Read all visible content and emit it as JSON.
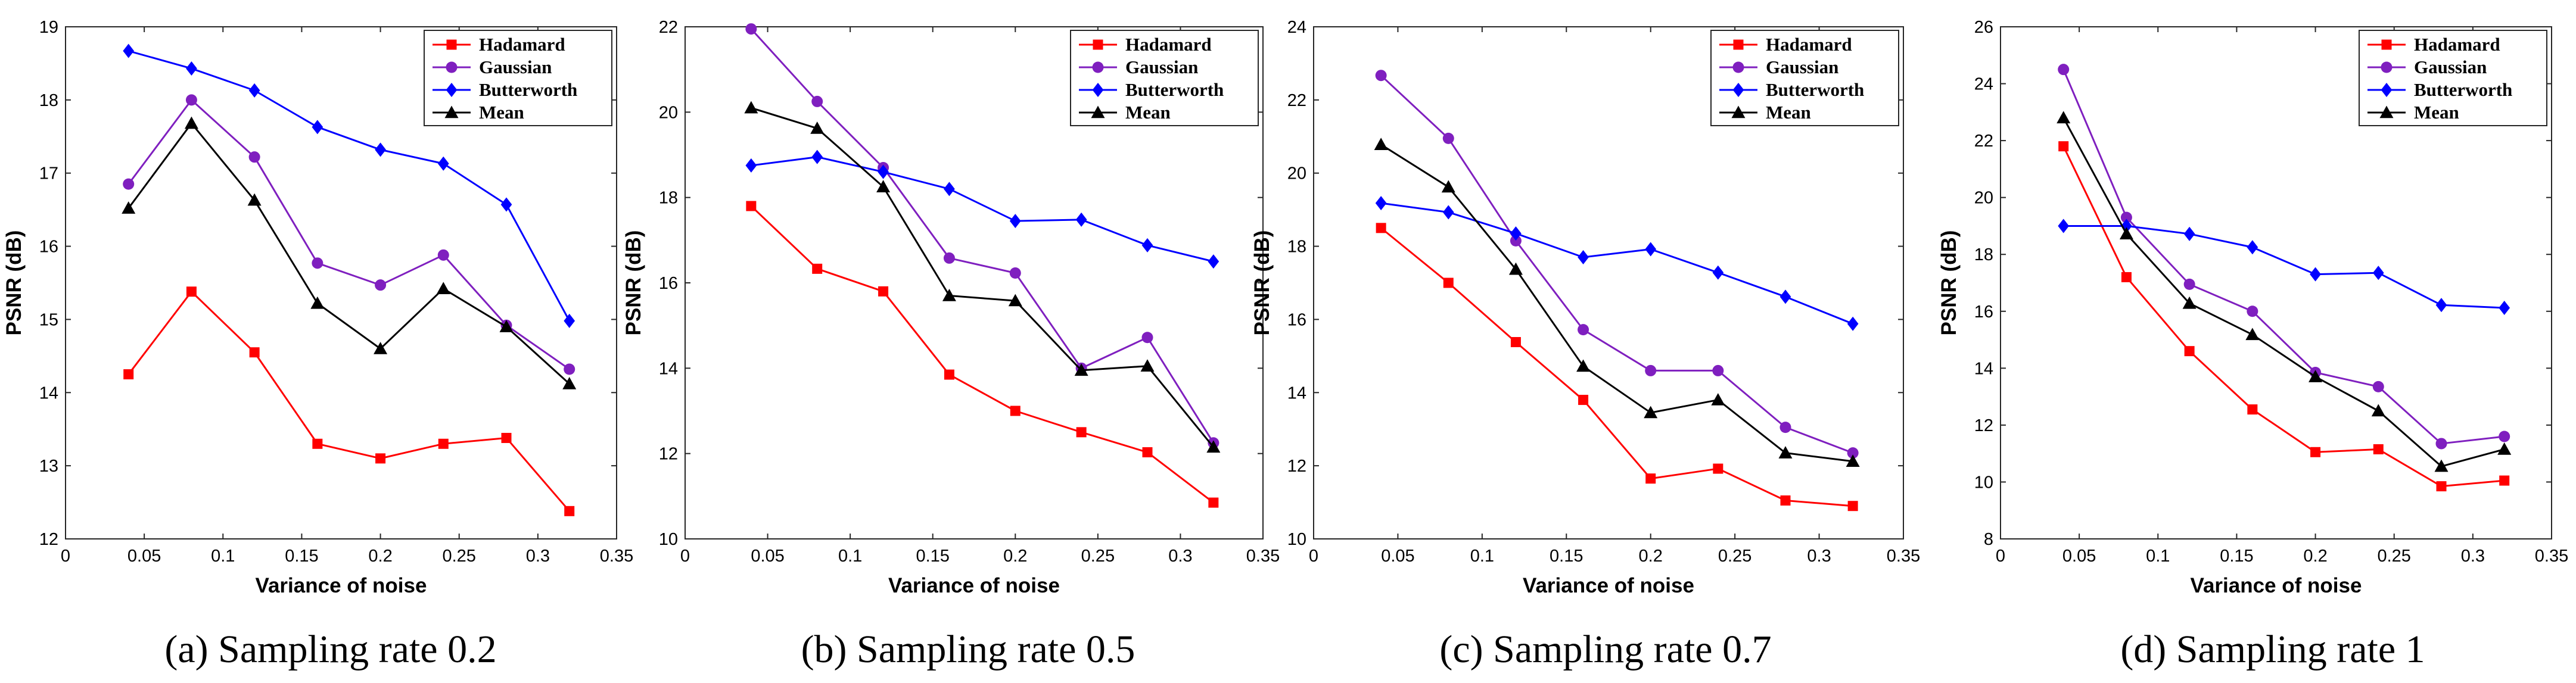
{
  "colors": {
    "Hadamard": "#ff0000",
    "Gaussian": "#7f1fbf",
    "Butterworth": "#0000ff",
    "Mean": "#000000"
  },
  "markers": {
    "Hadamard": "square",
    "Gaussian": "circle",
    "Butterworth": "diamond",
    "Mean": "triangle"
  },
  "chart_data": [
    {
      "type": "line",
      "caption": "(a) Sampling rate 0.2",
      "xlabel": "Variance of noise",
      "ylabel": "PSNR (dB)",
      "xlim": [
        0,
        0.35
      ],
      "ylim": [
        12,
        19
      ],
      "xticks": [
        0,
        0.05,
        0.1,
        0.15,
        0.2,
        0.25,
        0.3,
        0.35
      ],
      "xtick_labels": [
        "0",
        "0.05",
        "0.1",
        "0.15",
        "0.2",
        "0.25",
        "0.3",
        "0.35"
      ],
      "yticks": [
        12,
        13,
        14,
        15,
        16,
        17,
        18,
        19
      ],
      "ytick_labels": [
        "12",
        "13",
        "14",
        "15",
        "16",
        "17",
        "18",
        "19"
      ],
      "legend_position": "top-right",
      "x": [
        0.04,
        0.08,
        0.12,
        0.16,
        0.2,
        0.24,
        0.28,
        0.32
      ],
      "series": [
        {
          "name": "Hadamard",
          "values": [
            14.25,
            15.38,
            14.55,
            13.3,
            13.1,
            13.3,
            13.38,
            12.38
          ]
        },
        {
          "name": "Gaussian",
          "values": [
            16.85,
            18.0,
            17.22,
            15.77,
            15.47,
            15.88,
            14.92,
            14.32
          ]
        },
        {
          "name": "Butterworth",
          "values": [
            18.67,
            18.43,
            18.13,
            17.63,
            17.32,
            17.13,
            16.57,
            14.98
          ]
        },
        {
          "name": "Mean",
          "values": [
            16.52,
            17.68,
            16.63,
            15.22,
            14.6,
            15.42,
            14.9,
            14.12
          ]
        }
      ]
    },
    {
      "type": "line",
      "caption": "(b) Sampling rate 0.5",
      "xlabel": "Variance of noise",
      "ylabel": "PSNR (dB)",
      "xlim": [
        0,
        0.35
      ],
      "ylim": [
        10,
        22
      ],
      "xticks": [
        0,
        0.05,
        0.1,
        0.15,
        0.2,
        0.25,
        0.3,
        0.35
      ],
      "xtick_labels": [
        "0",
        "0.05",
        "0.1",
        "0.15",
        "0.2",
        "0.25",
        "0.3",
        "0.35"
      ],
      "yticks": [
        10,
        12,
        14,
        16,
        18,
        20,
        22
      ],
      "ytick_labels": [
        "10",
        "12",
        "14",
        "16",
        "18",
        "20",
        "22"
      ],
      "legend_position": "top-right",
      "x": [
        0.04,
        0.08,
        0.12,
        0.16,
        0.2,
        0.24,
        0.28,
        0.32
      ],
      "series": [
        {
          "name": "Hadamard",
          "values": [
            17.8,
            16.33,
            15.8,
            13.85,
            13.0,
            12.5,
            12.03,
            10.85
          ]
        },
        {
          "name": "Gaussian",
          "values": [
            21.95,
            20.25,
            18.7,
            16.58,
            16.23,
            14.0,
            14.72,
            12.25
          ]
        },
        {
          "name": "Butterworth",
          "values": [
            18.75,
            18.95,
            18.6,
            18.2,
            17.45,
            17.48,
            16.88,
            16.5
          ]
        },
        {
          "name": "Mean",
          "values": [
            20.1,
            19.62,
            18.25,
            15.7,
            15.58,
            13.95,
            14.05,
            12.15
          ]
        }
      ]
    },
    {
      "type": "line",
      "caption": "(c) Sampling rate 0.7",
      "xlabel": "Variance of noise",
      "ylabel": "PSNR (dB)",
      "xlim": [
        0,
        0.35
      ],
      "ylim": [
        10,
        24
      ],
      "xticks": [
        0,
        0.05,
        0.1,
        0.15,
        0.2,
        0.25,
        0.3,
        0.35
      ],
      "xtick_labels": [
        "0",
        "0.05",
        "0.1",
        "0.15",
        "0.2",
        "0.25",
        "0.3",
        "0.35"
      ],
      "yticks": [
        10,
        12,
        14,
        16,
        18,
        20,
        22,
        24
      ],
      "ytick_labels": [
        "10",
        "12",
        "14",
        "16",
        "18",
        "20",
        "22",
        "24"
      ],
      "legend_position": "top-right",
      "x": [
        0.04,
        0.08,
        0.12,
        0.16,
        0.2,
        0.24,
        0.28,
        0.32
      ],
      "series": [
        {
          "name": "Hadamard",
          "values": [
            18.5,
            17.0,
            15.38,
            13.8,
            11.65,
            11.92,
            11.05,
            10.9
          ]
        },
        {
          "name": "Gaussian",
          "values": [
            22.67,
            20.95,
            18.15,
            15.72,
            14.6,
            14.6,
            13.05,
            12.35
          ]
        },
        {
          "name": "Butterworth",
          "values": [
            19.18,
            18.93,
            18.35,
            17.7,
            17.92,
            17.28,
            16.62,
            15.88
          ]
        },
        {
          "name": "Mean",
          "values": [
            20.78,
            19.62,
            17.37,
            14.72,
            13.45,
            13.8,
            12.35,
            12.12
          ]
        }
      ]
    },
    {
      "type": "line",
      "caption": "(d) Sampling rate 1",
      "xlabel": "Variance of noise",
      "ylabel": "PSNR (dB)",
      "xlim": [
        0,
        0.35
      ],
      "ylim": [
        8,
        26
      ],
      "xticks": [
        0,
        0.05,
        0.1,
        0.15,
        0.2,
        0.25,
        0.3,
        0.35
      ],
      "xtick_labels": [
        "0",
        "0.05",
        "0.1",
        "0.15",
        "0.2",
        "0.25",
        "0.3",
        "0.35"
      ],
      "yticks": [
        8,
        10,
        12,
        14,
        16,
        18,
        20,
        22,
        24,
        26
      ],
      "ytick_labels": [
        "8",
        "10",
        "12",
        "14",
        "16",
        "18",
        "20",
        "22",
        "24",
        "26"
      ],
      "legend_position": "top-right",
      "x": [
        0.04,
        0.08,
        0.12,
        0.16,
        0.2,
        0.24,
        0.28,
        0.32
      ],
      "series": [
        {
          "name": "Hadamard",
          "values": [
            21.8,
            17.2,
            14.6,
            12.55,
            11.05,
            11.15,
            9.85,
            10.05
          ]
        },
        {
          "name": "Gaussian",
          "values": [
            24.5,
            19.3,
            16.95,
            16.0,
            13.85,
            13.35,
            11.35,
            11.6
          ]
        },
        {
          "name": "Butterworth",
          "values": [
            19.0,
            19.0,
            18.72,
            18.25,
            17.3,
            17.35,
            16.22,
            16.12
          ]
        },
        {
          "name": "Mean",
          "values": [
            22.8,
            18.72,
            16.28,
            15.18,
            13.7,
            12.5,
            10.55,
            11.15
          ]
        }
      ]
    }
  ]
}
